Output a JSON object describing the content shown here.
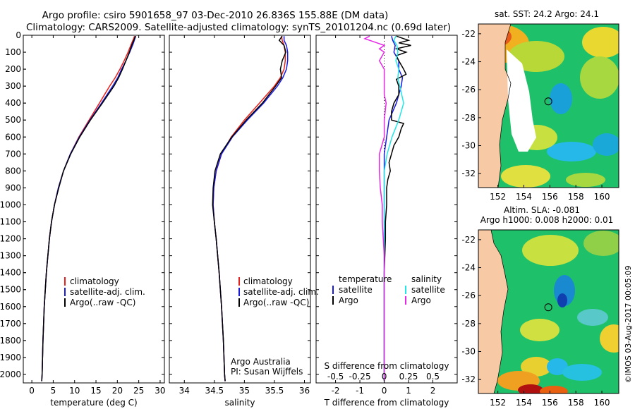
{
  "header": {
    "line1": "Argo profile: csiro 5901658_97 03-Dec-2010 26.836S 155.88E (DM data)",
    "line2": "Climatology: CARS2009. Satellite-adjusted climatology: synTS_20101204.nc (0.69d later)"
  },
  "colors": {
    "climatology": "#e8201c",
    "satellite": "#1a1adf",
    "argo": "#000000",
    "sal_satellite": "#22e6e6",
    "sal_argo": "#e626e6",
    "land": "#f7c9a4"
  },
  "chart_data": [
    {
      "id": "temperature",
      "type": "line",
      "xlabel": "temperature (deg C)",
      "xlim": [
        -2,
        31
      ],
      "ylim": [
        2050,
        0
      ],
      "xticks": [
        "0",
        "5",
        "10",
        "15",
        "20",
        "25",
        "30"
      ],
      "xtick_values": [
        0,
        5,
        10,
        15,
        20,
        25,
        30
      ],
      "yticks": [
        "0",
        "100",
        "200",
        "300",
        "400",
        "500",
        "600",
        "700",
        "800",
        "900",
        "1000",
        "1100",
        "1200",
        "1300",
        "1400",
        "1500",
        "1600",
        "1700",
        "1800",
        "1900",
        "2000"
      ],
      "ytick_values": [
        0,
        100,
        200,
        300,
        400,
        500,
        600,
        700,
        800,
        900,
        1000,
        1100,
        1200,
        1300,
        1400,
        1500,
        1600,
        1700,
        1800,
        1900,
        2000
      ],
      "legend": [
        "climatology",
        "satellite-adj. clim.",
        "Argo(..raw -QC)"
      ],
      "series": [
        {
          "name": "climatology",
          "color": "#e8201c",
          "depth": [
            5,
            20,
            50,
            100,
            150,
            200,
            250,
            300,
            400,
            500,
            600,
            700,
            800,
            900,
            1000,
            1100,
            1200,
            1400,
            1600,
            1800,
            2000,
            2040
          ],
          "values": [
            24.0,
            23.8,
            23.3,
            22.5,
            21.6,
            20.6,
            19.5,
            18.2,
            15.8,
            13.4,
            11.0,
            9.0,
            7.4,
            6.2,
            5.3,
            4.6,
            4.1,
            3.4,
            2.9,
            2.6,
            2.4,
            2.3
          ]
        },
        {
          "name": "satellite-adj. clim.",
          "color": "#1a1adf",
          "depth": [
            5,
            20,
            50,
            100,
            150,
            200,
            250,
            300,
            400,
            500,
            600,
            700,
            800,
            900,
            1000,
            1100,
            1200,
            1400,
            1600,
            1800,
            2000,
            2040
          ],
          "values": [
            24.3,
            24.1,
            23.7,
            22.9,
            22.0,
            21.0,
            20.1,
            18.9,
            16.3,
            13.6,
            11.1,
            9.0,
            7.4,
            6.2,
            5.3,
            4.6,
            4.1,
            3.4,
            2.9,
            2.6,
            2.4,
            2.3
          ]
        },
        {
          "name": "Argo(..raw -QC)",
          "color": "#000000",
          "depth": [
            5,
            20,
            50,
            100,
            150,
            200,
            250,
            300,
            400,
            500,
            600,
            700,
            800,
            900,
            1000,
            1100,
            1200,
            1400,
            1600,
            1800,
            2000,
            2040
          ],
          "values": [
            24.2,
            24.0,
            23.5,
            22.8,
            22.0,
            21.2,
            20.3,
            19.2,
            16.5,
            13.7,
            11.2,
            9.1,
            7.4,
            6.3,
            5.3,
            4.6,
            4.1,
            3.4,
            2.9,
            2.6,
            2.4,
            2.3
          ]
        }
      ]
    },
    {
      "id": "salinity",
      "type": "line",
      "xlabel": "salinity",
      "xlim": [
        33.75,
        36.1
      ],
      "ylim": [
        2050,
        0
      ],
      "xticks": [
        "34",
        "34.5",
        "35",
        "35.5",
        "36"
      ],
      "xtick_values": [
        34,
        34.5,
        35,
        35.5,
        36
      ],
      "legend": [
        "climatology",
        "satellite-adj. clim.",
        "Argo(..raw -QC)"
      ],
      "annotation": [
        "Argo Australia",
        "PI: Susan Wijffels"
      ],
      "series": [
        {
          "name": "climatology",
          "color": "#e8201c",
          "depth": [
            5,
            30,
            60,
            100,
            150,
            200,
            250,
            300,
            400,
            500,
            600,
            700,
            800,
            900,
            1000,
            1100,
            1200,
            1400,
            1600,
            1800,
            2000,
            2040
          ],
          "values": [
            35.62,
            35.63,
            35.66,
            35.68,
            35.68,
            35.66,
            35.6,
            35.5,
            35.25,
            35.0,
            34.78,
            34.62,
            34.53,
            34.49,
            34.48,
            34.5,
            34.53,
            34.58,
            34.62,
            34.65,
            34.67,
            34.68
          ]
        },
        {
          "name": "satellite-adj. clim.",
          "color": "#1a1adf",
          "depth": [
            5,
            30,
            60,
            100,
            150,
            200,
            250,
            300,
            400,
            500,
            600,
            700,
            800,
            900,
            1000,
            1100,
            1200,
            1400,
            1600,
            1800,
            2000,
            2040
          ],
          "values": [
            35.66,
            35.66,
            35.7,
            35.72,
            35.72,
            35.7,
            35.64,
            35.55,
            35.32,
            35.05,
            34.8,
            34.62,
            34.53,
            34.49,
            34.48,
            34.5,
            34.53,
            34.58,
            34.62,
            34.65,
            34.67,
            34.68
          ]
        },
        {
          "name": "Argo(..raw -QC)",
          "color": "#000000",
          "depth": [
            5,
            30,
            60,
            100,
            150,
            200,
            250,
            300,
            400,
            500,
            600,
            700,
            800,
            900,
            1000,
            1100,
            1200,
            1400,
            1600,
            1800,
            2000,
            2040
          ],
          "values": [
            35.63,
            35.58,
            35.66,
            35.69,
            35.63,
            35.6,
            35.62,
            35.52,
            35.3,
            35.03,
            34.79,
            34.6,
            34.51,
            34.48,
            34.47,
            34.5,
            34.53,
            34.58,
            34.62,
            34.65,
            34.67,
            34.68
          ]
        }
      ]
    },
    {
      "id": "difference",
      "type": "line",
      "xlabel_top": "S difference from climatology",
      "xlabel": "T difference from climatology",
      "xlim": [
        -2.8,
        3.0
      ],
      "ylim": [
        2050,
        0
      ],
      "xticks": [
        "-2",
        "-1",
        "0",
        "1",
        "2"
      ],
      "xtick_values": [
        -2,
        -1,
        0,
        1,
        2
      ],
      "sticks": [
        "-0.5",
        "-0.25",
        "0",
        "0.25",
        "0.5"
      ],
      "legend_temperature": {
        "title": "temperature",
        "entries": [
          "satellite",
          "Argo"
        ]
      },
      "legend_salinity": {
        "title": "salinity",
        "entries": [
          "satellite",
          "Argo"
        ]
      },
      "series": [
        {
          "name": "temperature satellite",
          "color": "#1a1adf",
          "depth": [
            5,
            30,
            60,
            100,
            150,
            200,
            250,
            300,
            400,
            500,
            600,
            700,
            800,
            1000,
            1200,
            1500,
            2040
          ],
          "values": [
            0.3,
            0.35,
            0.45,
            0.4,
            0.6,
            0.6,
            0.75,
            0.7,
            0.5,
            0.2,
            0.1,
            0.0,
            0.0,
            0.0,
            0.0,
            0.0,
            0.0
          ]
        },
        {
          "name": "temperature Argo",
          "color": "#000000",
          "depth": [
            5,
            20,
            30,
            45,
            60,
            80,
            100,
            120,
            150,
            200,
            230,
            260,
            300,
            350,
            400,
            450,
            500,
            520,
            550,
            600,
            650,
            700,
            750,
            800,
            850,
            900,
            1000,
            1100,
            1200,
            1400,
            1600,
            1800,
            2040
          ],
          "values": [
            0.5,
            0.8,
            1.0,
            0.6,
            1.1,
            0.5,
            0.9,
            0.5,
            0.6,
            0.8,
            0.9,
            0.5,
            0.6,
            0.6,
            0.4,
            0.3,
            0.3,
            0.8,
            0.7,
            0.6,
            0.4,
            0.3,
            0.2,
            0.25,
            0.15,
            0.1,
            0.1,
            0.05,
            0.05,
            0.0,
            0.0,
            0.0,
            0.0
          ]
        },
        {
          "name": "salinity satellite",
          "color": "#22e6e6",
          "depth": [
            5,
            30,
            60,
            100,
            150,
            200,
            250,
            300,
            400,
            500,
            600,
            700,
            800,
            1000,
            1200,
            1500,
            2040
          ],
          "values": [
            0.12,
            0.1,
            0.13,
            0.14,
            0.12,
            0.15,
            0.14,
            0.16,
            0.2,
            0.15,
            0.08,
            0.03,
            0.0,
            0.0,
            0.0,
            0.0,
            0.0
          ]
        },
        {
          "name": "salinity Argo",
          "color": "#e626e6",
          "depth": [
            5,
            20,
            40,
            60,
            80,
            100,
            150,
            200,
            250,
            300,
            350,
            400,
            500,
            600,
            700,
            800,
            900,
            1000,
            1100,
            1200,
            1300,
            1400,
            1500,
            2040
          ],
          "values": [
            -0.15,
            -0.2,
            -0.1,
            0.0,
            -0.05,
            0.0,
            -0.05,
            0.0,
            0.0,
            0.0,
            0.0,
            0.02,
            0.0,
            0.0,
            -0.05,
            -0.05,
            -0.04,
            -0.02,
            -0.02,
            -0.01,
            0.0,
            0.0,
            0.0,
            0.0
          ]
        }
      ]
    },
    {
      "id": "sst_map",
      "type": "heatmap",
      "title": "sat. SST: 24.2 Argo: 24.1",
      "xticks": [
        "152",
        "154",
        "156",
        "158",
        "160"
      ],
      "xtick_values": [
        152,
        154,
        156,
        158,
        160
      ],
      "yticks": [
        "-22",
        "-24",
        "-26",
        "-28",
        "-30",
        "-32"
      ],
      "ytick_values": [
        -22,
        -24,
        -26,
        -28,
        -30,
        -32
      ],
      "xlim": [
        150.5,
        161.3
      ],
      "ylim": [
        -33.0,
        -21.3
      ],
      "profile_location": [
        155.88,
        -26.836
      ]
    },
    {
      "id": "sla_map",
      "type": "heatmap",
      "title_line1": "Altim. SLA: -0.081",
      "title_line2": "Argo h1000: 0.008 h2000: 0.01",
      "xticks": [
        "152",
        "154",
        "156",
        "158",
        "160"
      ],
      "xtick_values": [
        152,
        154,
        156,
        158,
        160
      ],
      "yticks": [
        "-22",
        "-24",
        "-26",
        "-28",
        "-30",
        "-32"
      ],
      "ytick_values": [
        -22,
        -24,
        -26,
        -28,
        -30,
        -32
      ],
      "xlim": [
        150.5,
        161.3
      ],
      "ylim": [
        -33.0,
        -21.3
      ],
      "profile_location": [
        155.88,
        -26.836
      ]
    }
  ],
  "footer_credit": "©IMOS 03-Aug-2017 00:05:09"
}
